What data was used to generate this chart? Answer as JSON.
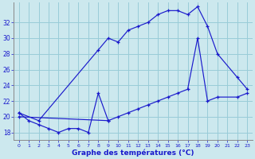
{
  "xlabel": "Graphe des températures (°C)",
  "background_color": "#cce8ee",
  "grid_color": "#99ccd8",
  "line_color": "#1a1acc",
  "ylim": [
    17.0,
    34.5
  ],
  "xlim": [
    -0.5,
    23.5
  ],
  "yticks": [
    18,
    20,
    22,
    24,
    26,
    28,
    30,
    32
  ],
  "xticks": [
    0,
    1,
    2,
    3,
    4,
    5,
    6,
    7,
    8,
    9,
    10,
    11,
    12,
    13,
    14,
    15,
    16,
    17,
    18,
    19,
    20,
    21,
    22,
    23
  ],
  "curve1_x": [
    0,
    1,
    2,
    3,
    4,
    5,
    6,
    7,
    8,
    9
  ],
  "curve1_y": [
    20.5,
    19.5,
    19.0,
    18.5,
    18.0,
    18.5,
    18.5,
    18.0,
    23.0,
    19.5
  ],
  "curve2_x": [
    0,
    2,
    8,
    9,
    10,
    11,
    12,
    13,
    14,
    15,
    16,
    17,
    18,
    19,
    20,
    22,
    23
  ],
  "curve2_y": [
    20.5,
    19.5,
    28.5,
    30.0,
    29.5,
    31.0,
    31.5,
    32.0,
    33.0,
    33.5,
    33.5,
    33.0,
    34.0,
    31.5,
    28.0,
    25.0,
    23.5
  ],
  "curve3_x": [
    0,
    9,
    10,
    11,
    12,
    13,
    14,
    15,
    16,
    17,
    18,
    19,
    20,
    22,
    23
  ],
  "curve3_y": [
    20.0,
    19.5,
    20.0,
    20.5,
    21.0,
    21.5,
    22.0,
    22.5,
    23.0,
    23.5,
    30.0,
    22.0,
    22.5,
    22.5,
    23.0
  ]
}
